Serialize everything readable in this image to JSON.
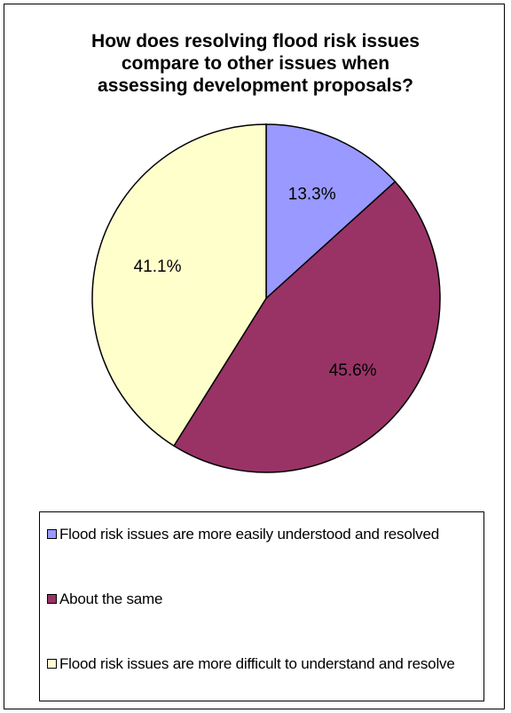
{
  "chart_data": {
    "type": "pie",
    "title_lines": [
      "How does resolving flood risk issues",
      "compare to other issues when",
      "assessing development proposals?"
    ],
    "slices": [
      {
        "label": "Flood risk issues are more easily understood and resolved",
        "value": 13.3,
        "value_label": "13.3%",
        "color": "#9999ff"
      },
      {
        "label": "About the same",
        "value": 45.6,
        "value_label": "45.6%",
        "color": "#993366"
      },
      {
        "label": "Flood risk issues are more difficult to understand and resolve",
        "value": 41.1,
        "value_label": "41.1%",
        "color": "#ffffcc"
      }
    ],
    "legend_position": "bottom",
    "slice_edge_color": "#000000"
  }
}
